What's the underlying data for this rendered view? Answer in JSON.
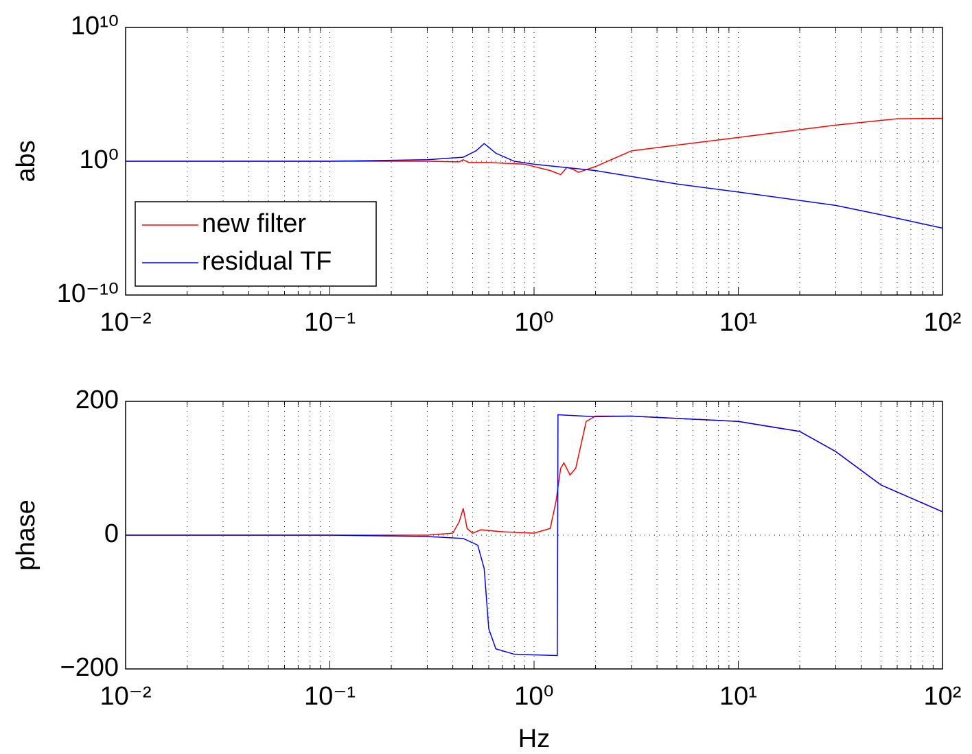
{
  "chart_data": [
    {
      "type": "line",
      "ylabel": "abs",
      "xscale": "log",
      "yscale": "log",
      "grid": true,
      "legend": "southwest",
      "xlim": [
        0.01,
        100
      ],
      "ylim": [
        1e-10,
        10000000000.0
      ],
      "xticks": [
        {
          "value": 0.01,
          "label": "10⁻²"
        },
        {
          "value": 0.1,
          "label": "10⁻¹"
        },
        {
          "value": 1,
          "label": "10⁰"
        },
        {
          "value": 10,
          "label": "10¹"
        },
        {
          "value": 100,
          "label": "10²"
        }
      ],
      "yticks": [
        {
          "value": 1e-10,
          "label": "10⁻¹⁰"
        },
        {
          "value": 1,
          "label": "10⁰"
        },
        {
          "value": 10000000000.0,
          "label": "10¹⁰"
        }
      ],
      "series": [
        {
          "name": "new filter",
          "color": "#ff0000",
          "x": [
            0.01,
            0.1,
            0.3,
            0.43,
            0.45,
            0.48,
            0.6,
            0.9,
            1.2,
            1.35,
            1.45,
            1.55,
            1.65,
            2,
            3,
            10,
            30,
            60,
            100
          ],
          "values": [
            1,
            1,
            1,
            0.9,
            1.3,
            0.8,
            0.8,
            0.6,
            0.2,
            0.1,
            0.35,
            0.25,
            0.15,
            0.4,
            6,
            60,
            500,
            1500,
            1600
          ]
        },
        {
          "name": "residual TF",
          "color": "#0000ff",
          "x": [
            0.01,
            0.1,
            0.3,
            0.45,
            0.52,
            0.57,
            0.65,
            0.8,
            1,
            2,
            5,
            10,
            30,
            50,
            100
          ],
          "values": [
            1,
            1,
            1.3,
            2,
            6,
            21,
            4,
            1,
            0.6,
            0.2,
            0.02,
            0.005,
            0.0005,
            0.0001,
            1e-05
          ]
        }
      ]
    },
    {
      "type": "line",
      "ylabel": "phase",
      "xlabel": "Hz",
      "xscale": "log",
      "grid": true,
      "xlim": [
        0.01,
        100
      ],
      "ylim": [
        -200,
        200
      ],
      "xticks": [
        {
          "value": 0.01,
          "label": "10⁻²"
        },
        {
          "value": 0.1,
          "label": "10⁻¹"
        },
        {
          "value": 1,
          "label": "10⁰"
        },
        {
          "value": 10,
          "label": "10¹"
        },
        {
          "value": 100,
          "label": "10²"
        }
      ],
      "yticks": [
        {
          "value": -200,
          "label": "−200"
        },
        0,
        200
      ],
      "series": [
        {
          "name": "new filter",
          "color": "#ff0000",
          "x": [
            0.01,
            0.1,
            0.3,
            0.4,
            0.43,
            0.45,
            0.47,
            0.5,
            0.55,
            0.7,
            1,
            1.2,
            1.28,
            1.35,
            1.4,
            1.5,
            1.6,
            1.8,
            2,
            3,
            10,
            20,
            30,
            50,
            100
          ],
          "values": [
            0,
            0,
            0,
            3,
            20,
            40,
            10,
            3,
            8,
            5,
            3,
            10,
            50,
            100,
            108,
            90,
            100,
            170,
            178,
            178,
            170,
            155,
            125,
            75,
            35
          ]
        },
        {
          "name": "residual TF",
          "color": "#0000ff",
          "x": [
            0.01,
            0.1,
            0.3,
            0.45,
            0.53,
            0.57,
            0.6,
            0.65,
            0.8,
            1,
            1.3,
            1.31,
            2,
            3,
            10,
            20,
            30,
            50,
            100
          ],
          "values": [
            0,
            0,
            -2,
            -5,
            -15,
            -50,
            -140,
            -170,
            -178,
            -179,
            -180,
            180,
            177,
            178,
            170,
            155,
            125,
            75,
            35
          ]
        }
      ]
    }
  ]
}
